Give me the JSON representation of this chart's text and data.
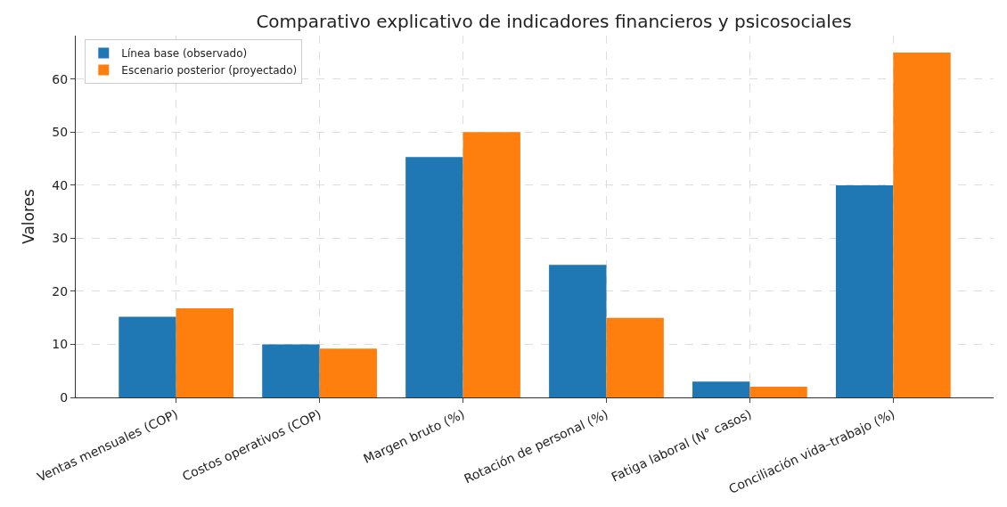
{
  "chart_data": {
    "type": "bar",
    "title": "Comparativo explicativo de indicadores financieros y psicosociales",
    "ylabel": "Valores",
    "categories": [
      "Ventas mensuales (COP)",
      "Costos operativos (COP)",
      "Margen bruto (%)",
      "Rotación de personal (%)",
      "Fatiga laboral (N° casos)",
      "Conciliación vida–trabajo (%)"
    ],
    "series": [
      {
        "name": "Línea base (observado)",
        "color": "#1f77b4",
        "values": [
          15.2,
          10,
          45.3,
          25,
          3,
          40
        ]
      },
      {
        "name": "Escenario posterior (proyectado)",
        "color": "#ff7f0e",
        "values": [
          16.8,
          9.2,
          50,
          15,
          2,
          65
        ]
      }
    ],
    "ylim": [
      0,
      68.2
    ],
    "yticks": [
      0,
      10,
      20,
      30,
      40,
      50,
      60
    ],
    "grid": true,
    "legend": "top left"
  }
}
